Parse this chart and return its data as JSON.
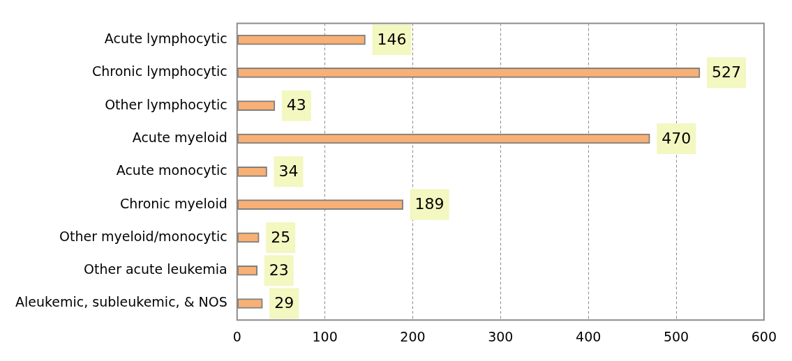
{
  "chart_data": {
    "type": "bar",
    "orientation": "horizontal",
    "categories": [
      "Acute lymphocytic",
      "Chronic lymphocytic",
      "Other lymphocytic",
      "Acute myeloid",
      "Acute monocytic",
      "Chronic myeloid",
      "Other myeloid/monocytic",
      "Other acute leukemia",
      "Aleukemic, subleukemic, & NOS"
    ],
    "values": [
      146,
      527,
      43,
      470,
      34,
      189,
      25,
      23,
      29
    ],
    "color": "#f9b074",
    "xlim": [
      0,
      600
    ],
    "xticks": [
      0,
      100,
      200,
      300,
      400,
      500,
      600
    ],
    "grid": "x",
    "legend": false,
    "data_labels": true
  }
}
